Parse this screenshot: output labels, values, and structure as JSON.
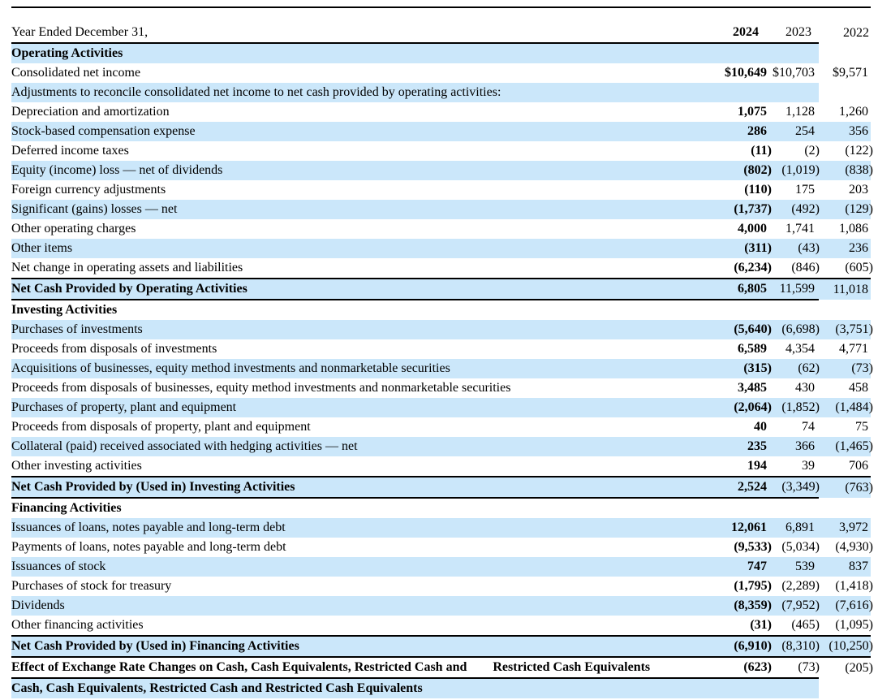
{
  "colors": {
    "row_shading": "#CBE7FA",
    "rule": "#000000",
    "text": "#000000",
    "background": "#FFFFFF"
  },
  "header": {
    "label": "Year Ended December 31,",
    "columns": [
      "2024",
      "2023",
      "2022"
    ]
  },
  "rows": [
    {
      "label": "Operating Activities",
      "bold": true,
      "shaded": true,
      "partial": true,
      "values": [
        "",
        "",
        ""
      ]
    },
    {
      "label": "Consolidated net income",
      "values": [
        "$10,649",
        "$10,703",
        "$9,571"
      ]
    },
    {
      "label": "Adjustments to reconcile consolidated net income to net cash provided by operating activities:",
      "shaded": true,
      "partial": true,
      "values": [
        "",
        "",
        ""
      ]
    },
    {
      "label": "Depreciation and amortization",
      "values": [
        "1,075",
        "1,128",
        "1,260"
      ]
    },
    {
      "label": "Stock-based compensation expense",
      "shaded": true,
      "values": [
        "286",
        "254",
        "356"
      ]
    },
    {
      "label": "Deferred income taxes",
      "values": [
        "(11)",
        "(2)",
        "(122)"
      ]
    },
    {
      "label": "Equity (income) loss — net of dividends",
      "shaded": true,
      "values": [
        "(802)",
        "(1,019)",
        "(838)"
      ]
    },
    {
      "label": "Foreign currency adjustments",
      "values": [
        "(110)",
        "175",
        "203"
      ]
    },
    {
      "label": "Significant (gains) losses — net",
      "shaded": true,
      "values": [
        "(1,737)",
        "(492)",
        "(129)"
      ]
    },
    {
      "label": "Other operating charges",
      "values": [
        "4,000",
        "1,741",
        "1,086"
      ]
    },
    {
      "label": "Other items",
      "shaded": true,
      "values": [
        "(311)",
        "(43)",
        "236"
      ]
    },
    {
      "label": "Net change in operating assets and liabilities",
      "values": [
        "(6,234)",
        "(846)",
        "(605)"
      ]
    },
    {
      "label": "Net Cash Provided by Operating Activities",
      "bold": true,
      "shaded": true,
      "values": [
        "6,805",
        "11,599",
        "11,018"
      ],
      "border_top": "full",
      "border_bottom": "partial"
    },
    {
      "label": "Investing Activities",
      "bold": true,
      "values": [
        "",
        "",
        ""
      ]
    },
    {
      "label": "Purchases of investments",
      "shaded": true,
      "values": [
        "(5,640)",
        "(6,698)",
        "(3,751)"
      ]
    },
    {
      "label": "Proceeds from disposals of investments",
      "values": [
        "6,589",
        "4,354",
        "4,771"
      ]
    },
    {
      "label": "Acquisitions of businesses, equity method investments and nonmarketable securities",
      "shaded": true,
      "values": [
        "(315)",
        "(62)",
        "(73)"
      ]
    },
    {
      "label": "Proceeds from disposals of businesses, equity method investments and nonmarketable securities",
      "values": [
        "3,485",
        "430",
        "458"
      ]
    },
    {
      "label": "Purchases of property, plant and equipment",
      "shaded": true,
      "values": [
        "(2,064)",
        "(1,852)",
        "(1,484)"
      ]
    },
    {
      "label": "Proceeds from disposals of property, plant and equipment",
      "values": [
        "40",
        "74",
        "75"
      ]
    },
    {
      "label": "Collateral (paid) received associated with hedging activities — net",
      "shaded": true,
      "values": [
        "235",
        "366",
        "(1,465)"
      ]
    },
    {
      "label": "Other investing activities",
      "values": [
        "194",
        "39",
        "706"
      ]
    },
    {
      "label": "Net Cash Provided by (Used in) Investing Activities",
      "bold": true,
      "shaded": true,
      "values": [
        "2,524",
        "(3,349)",
        "(763)"
      ],
      "border_top": "full",
      "border_bottom": "partial"
    },
    {
      "label": "Financing Activities",
      "bold": true,
      "values": [
        "",
        "",
        ""
      ]
    },
    {
      "label": "Issuances of loans, notes payable and long-term debt",
      "shaded": true,
      "values": [
        "12,061",
        "6,891",
        "3,972"
      ]
    },
    {
      "label": "Payments of loans, notes payable and long-term debt",
      "values": [
        "(9,533)",
        "(5,034)",
        "(4,930)"
      ]
    },
    {
      "label": "Issuances of stock",
      "shaded": true,
      "values": [
        "747",
        "539",
        "837"
      ]
    },
    {
      "label": "Purchases of stock for treasury",
      "values": [
        "(1,795)",
        "(2,289)",
        "(1,418)"
      ]
    },
    {
      "label": "Dividends",
      "shaded": true,
      "values": [
        "(8,359)",
        "(7,952)",
        "(7,616)"
      ]
    },
    {
      "label": "Other financing activities",
      "values": [
        "(31)",
        "(465)",
        "(1,095)"
      ]
    },
    {
      "label": "Net Cash Provided by (Used in) Financing Activities",
      "bold": true,
      "shaded": true,
      "values": [
        "(6,910)",
        "(8,310)",
        "(10,250)"
      ],
      "border_top": "full",
      "border_bottom": "full"
    },
    {
      "label": "Effect of Exchange Rate Changes on Cash, Cash Equivalents, Restricted Cash and",
      "label2": "Restricted Cash Equivalents",
      "bold": true,
      "values": [
        "(623)",
        "(73)",
        "(205)"
      ],
      "border_bottom": "partial"
    },
    {
      "label": "Cash, Cash Equivalents, Restricted Cash and Restricted Cash Equivalents",
      "bold": true,
      "shaded": true,
      "partial": true,
      "values": [
        "",
        "",
        ""
      ]
    }
  ]
}
